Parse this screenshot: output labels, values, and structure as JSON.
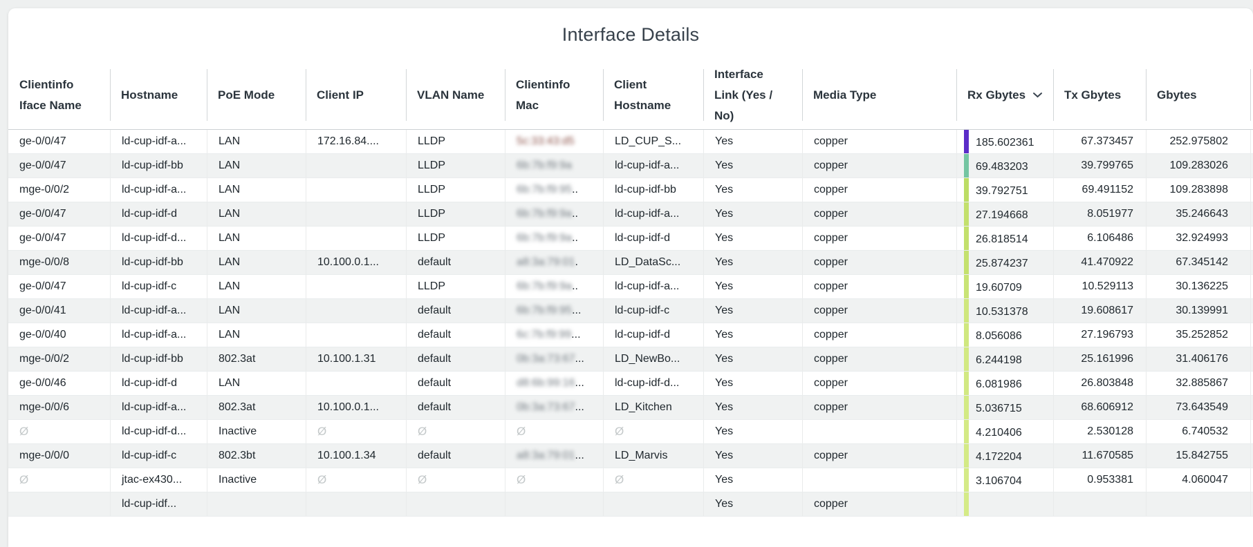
{
  "title": "Interface Details",
  "colors": {
    "page_background": "#eef0f0",
    "card_background": "#ffffff",
    "header_text": "#2b343c",
    "body_text": "#20282e",
    "alt_row": "#f0f2f2",
    "null_marker": "#c4c9ca"
  },
  "table": {
    "empty_marker": "Ø",
    "mac_values_blurred": true,
    "sort": {
      "column": "rx",
      "direction": "desc"
    },
    "columns": [
      {
        "id": "iface",
        "label": "Clientinfo\nIface Name"
      },
      {
        "id": "hostname",
        "label": "Hostname"
      },
      {
        "id": "poe",
        "label": "PoE Mode"
      },
      {
        "id": "ip",
        "label": "Client IP"
      },
      {
        "id": "vlan",
        "label": "VLAN Name"
      },
      {
        "id": "mac",
        "label": "Clientinfo\nMac"
      },
      {
        "id": "client",
        "label": "Client\nHostname"
      },
      {
        "id": "link",
        "label": "Interface\nLink (Yes /\nNo)"
      },
      {
        "id": "media",
        "label": "Media Type"
      },
      {
        "id": "rx",
        "label": "Rx Gbytes",
        "sort_icon": "chevron-down-icon"
      },
      {
        "id": "tx",
        "label": "Tx Gbytes"
      },
      {
        "id": "gbytes",
        "label": "Gbytes"
      }
    ],
    "rows": [
      {
        "iface": "ge-0/0/47",
        "hostname": "ld-cup-idf-a...",
        "poe": "LAN",
        "ip": "172.16.84....",
        "vlan": "LLDP",
        "mac": "5c:33:43:d5",
        "mac_suffix": "",
        "client": "LD_CUP_S...",
        "link": "Yes",
        "media": "copper",
        "rx": "185.602361",
        "tx": "67.373457",
        "gbytes": "252.975802",
        "bar_color": "#5b2dc8"
      },
      {
        "iface": "ge-0/0/47",
        "hostname": "ld-cup-idf-bb",
        "poe": "LAN",
        "ip": "",
        "vlan": "LLDP",
        "mac": "6b:7b:f9:9a",
        "mac_suffix": "",
        "client": "ld-cup-idf-a...",
        "link": "Yes",
        "media": "copper",
        "rx": "69.483203",
        "tx": "39.799765",
        "gbytes": "109.283026",
        "bar_color": "#74c5a2"
      },
      {
        "iface": "mge-0/0/2",
        "hostname": "ld-cup-idf-a...",
        "poe": "LAN",
        "ip": "",
        "vlan": "LLDP",
        "mac": "6b:7b:f9:95",
        "mac_suffix": "..",
        "client": "ld-cup-idf-bb",
        "link": "Yes",
        "media": "copper",
        "rx": "39.792751",
        "tx": "69.491152",
        "gbytes": "109.283898",
        "bar_color": "#bcdd65"
      },
      {
        "iface": "ge-0/0/47",
        "hostname": "ld-cup-idf-d",
        "poe": "LAN",
        "ip": "",
        "vlan": "LLDP",
        "mac": "6b:7b:f9:9a",
        "mac_suffix": "..",
        "client": "ld-cup-idf-a...",
        "link": "Yes",
        "media": "copper",
        "rx": "27.194668",
        "tx": "8.051977",
        "gbytes": "35.246643",
        "bar_color": "#c3e06c"
      },
      {
        "iface": "ge-0/0/47",
        "hostname": "ld-cup-idf-d...",
        "poe": "LAN",
        "ip": "",
        "vlan": "LLDP",
        "mac": "6b:7b:f9:9a",
        "mac_suffix": "..",
        "client": "ld-cup-idf-d",
        "link": "Yes",
        "media": "copper",
        "rx": "26.818514",
        "tx": "6.106486",
        "gbytes": "32.924993",
        "bar_color": "#c3e06c"
      },
      {
        "iface": "mge-0/0/8",
        "hostname": "ld-cup-idf-bb",
        "poe": "LAN",
        "ip": "10.100.0.1...",
        "vlan": "default",
        "mac": "a8:3a:79:01",
        "mac_suffix": ".",
        "client": "LD_DataSc...",
        "link": "Yes",
        "media": "copper",
        "rx": "25.874237",
        "tx": "41.470922",
        "gbytes": "67.345142",
        "bar_color": "#c4e16d"
      },
      {
        "iface": "ge-0/0/47",
        "hostname": "ld-cup-idf-c",
        "poe": "LAN",
        "ip": "",
        "vlan": "LLDP",
        "mac": "6b:7b:f9:9a",
        "mac_suffix": "..",
        "client": "ld-cup-idf-a...",
        "link": "Yes",
        "media": "copper",
        "rx": "19.60709",
        "tx": "10.529113",
        "gbytes": "30.136225",
        "bar_color": "#c9e475"
      },
      {
        "iface": "ge-0/0/41",
        "hostname": "ld-cup-idf-a...",
        "poe": "LAN",
        "ip": "",
        "vlan": "default",
        "mac": "6b:7b:f9:95",
        "mac_suffix": "...",
        "client": "ld-cup-idf-c",
        "link": "Yes",
        "media": "copper",
        "rx": "10.531378",
        "tx": "19.608617",
        "gbytes": "30.139991",
        "bar_color": "#cfe77d"
      },
      {
        "iface": "ge-0/0/40",
        "hostname": "ld-cup-idf-a...",
        "poe": "LAN",
        "ip": "",
        "vlan": "default",
        "mac": "6c:7b:f9:99",
        "mac_suffix": "...",
        "client": "ld-cup-idf-d",
        "link": "Yes",
        "media": "copper",
        "rx": "8.056086",
        "tx": "27.196793",
        "gbytes": "35.252852",
        "bar_color": "#d0e87f"
      },
      {
        "iface": "mge-0/0/2",
        "hostname": "ld-cup-idf-bb",
        "poe": "802.3at",
        "ip": "10.100.1.31",
        "vlan": "default",
        "mac": "0b:3a:73:67",
        "mac_suffix": "...",
        "client": "LD_NewBo...",
        "link": "Yes",
        "media": "copper",
        "rx": "6.244198",
        "tx": "25.161996",
        "gbytes": "31.406176",
        "bar_color": "#d2e982"
      },
      {
        "iface": "ge-0/0/46",
        "hostname": "ld-cup-idf-d",
        "poe": "LAN",
        "ip": "",
        "vlan": "default",
        "mac": "d8:6b:99:16",
        "mac_suffix": "...",
        "client": "ld-cup-idf-d...",
        "link": "Yes",
        "media": "copper",
        "rx": "6.081986",
        "tx": "26.803848",
        "gbytes": "32.885867",
        "bar_color": "#d2e982"
      },
      {
        "iface": "mge-0/0/6",
        "hostname": "ld-cup-idf-a...",
        "poe": "802.3at",
        "ip": "10.100.0.1...",
        "vlan": "default",
        "mac": "0b:3a:73:67",
        "mac_suffix": "...",
        "client": "LD_Kitchen",
        "link": "Yes",
        "media": "copper",
        "rx": "5.036715",
        "tx": "68.606912",
        "gbytes": "73.643549",
        "bar_color": "#d3ea84"
      },
      {
        "iface": "Ø",
        "hostname": "ld-cup-idf-d...",
        "poe": "Inactive",
        "ip": "Ø",
        "vlan": "Ø",
        "mac": "Ø",
        "mac_suffix": "",
        "client": "Ø",
        "link": "Yes",
        "media": "",
        "rx": "4.210406",
        "tx": "2.530128",
        "gbytes": "6.740532",
        "bar_color": "#d4ea85"
      },
      {
        "iface": "mge-0/0/0",
        "hostname": "ld-cup-idf-c",
        "poe": "802.3bt",
        "ip": "10.100.1.34",
        "vlan": "default",
        "mac": "a8:3a:79:01",
        "mac_suffix": "...",
        "client": "LD_Marvis",
        "link": "Yes",
        "media": "copper",
        "rx": "4.172204",
        "tx": "11.670585",
        "gbytes": "15.842755",
        "bar_color": "#d4ea85"
      },
      {
        "iface": "Ø",
        "hostname": "jtac-ex430...",
        "poe": "Inactive",
        "ip": "Ø",
        "vlan": "Ø",
        "mac": "Ø",
        "mac_suffix": "",
        "client": "Ø",
        "link": "Yes",
        "media": "",
        "rx": "3.106704",
        "tx": "0.953381",
        "gbytes": "4.060047",
        "bar_color": "#d5eb87"
      },
      {
        "iface": "",
        "hostname": "ld-cup-idf...",
        "poe": "",
        "ip": "",
        "vlan": "",
        "mac": "",
        "mac_suffix": "",
        "client": "",
        "link": "Yes",
        "media": "copper",
        "rx": "",
        "tx": "",
        "gbytes": "",
        "bar_color": "#d5eb87",
        "truncated": true
      }
    ]
  }
}
